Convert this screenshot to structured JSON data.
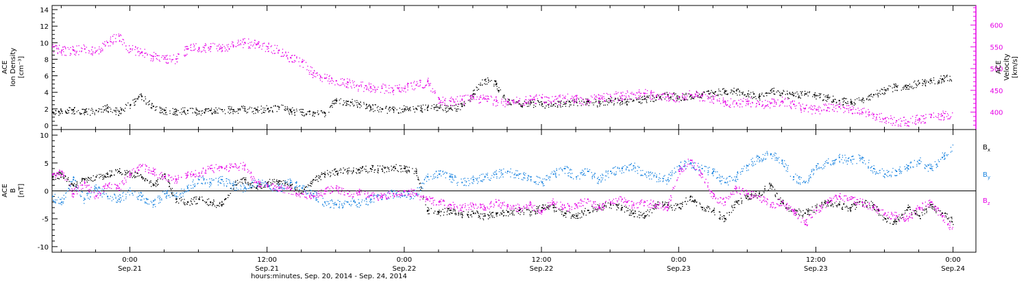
{
  "colors": {
    "black": "#000000",
    "magenta": "#e600e6",
    "blue": "#1a84e0",
    "axis": "#000000"
  },
  "x_axis": {
    "tick_labels": [
      {
        "time": "0:00",
        "date": "Sep.21",
        "hour": 24
      },
      {
        "time": "12:00",
        "date": "Sep.21",
        "hour": 36
      },
      {
        "time": "0:00",
        "date": "Sep.22",
        "hour": 48
      },
      {
        "time": "12:00",
        "date": "Sep.22",
        "hour": 60
      },
      {
        "time": "0:00",
        "date": "Sep.23",
        "hour": 72
      },
      {
        "time": "12:00",
        "date": "Sep.23",
        "hour": 84
      },
      {
        "time": "0:00",
        "date": "Sep.24",
        "hour": 96
      }
    ],
    "title": "hours:minutes, Sep. 20, 2014 - Sep. 24, 2014"
  },
  "chart_data": [
    {
      "type": "scatter",
      "panel": "top",
      "ylabel_left": [
        "ACE",
        "Ion Density",
        "[cm⁻³]"
      ],
      "ylabel_right": [
        "ACE",
        "Velocity",
        "[km/s]"
      ],
      "x_unit": "hours since Sep. 20, 2014 00:00",
      "xlim": [
        17.2,
        98
      ],
      "ylim_left": [
        -0.5,
        14.5
      ],
      "ylim_right": [
        360,
        645
      ],
      "yticks_left": [
        0,
        2,
        4,
        6,
        8,
        10,
        12,
        14
      ],
      "yticks_right": [
        400,
        450,
        500,
        550,
        600
      ],
      "series": [
        {
          "axis": "left",
          "color": "#000000",
          "x": [
            17.2,
            18,
            19,
            20,
            21,
            22,
            23,
            24,
            25,
            26,
            27,
            28,
            29,
            30,
            31,
            32,
            33,
            34,
            35,
            36,
            37,
            38,
            39,
            40,
            41,
            42,
            43,
            44,
            45,
            46,
            47,
            48,
            49,
            50,
            51,
            52,
            53,
            54,
            55,
            56,
            57,
            58,
            59,
            60,
            61,
            62,
            63,
            64,
            65,
            66,
            67,
            68,
            69,
            70,
            71,
            72,
            73,
            74,
            75,
            76,
            77,
            78,
            79,
            80,
            81,
            82,
            83,
            84,
            85,
            86,
            87,
            88,
            89,
            90,
            91,
            92,
            93,
            94,
            95
          ],
          "y": [
            1.6,
            1.7,
            1.9,
            1.6,
            1.8,
            2.1,
            1.7,
            2.5,
            3.5,
            2.3,
            1.8,
            1.7,
            1.8,
            1.7,
            1.8,
            1.9,
            1.9,
            2.0,
            1.9,
            2.0,
            2.2,
            1.8,
            1.6,
            1.6,
            1.5,
            3.0,
            2.9,
            2.6,
            2.2,
            2.0,
            1.9,
            2.0,
            2.0,
            2.2,
            2.1,
            2.1,
            2.3,
            3.8,
            5.5,
            5.0,
            2.9,
            2.6,
            2.7,
            2.6,
            2.5,
            2.6,
            2.8,
            2.9,
            2.7,
            3.0,
            2.9,
            3.0,
            3.2,
            3.4,
            3.7,
            3.4,
            3.6,
            3.8,
            3.9,
            4.1,
            4.2,
            3.8,
            3.5,
            4.2,
            3.9,
            3.6,
            3.8,
            3.6,
            3.4,
            3.0,
            2.8,
            3.1,
            3.7,
            4.3,
            4.7,
            4.8,
            5.1,
            5.4,
            5.6
          ]
        },
        {
          "axis": "right",
          "color": "#e600e6",
          "x": [
            17.2,
            18,
            19,
            20,
            21,
            22,
            23,
            24,
            25,
            26,
            27,
            28,
            29,
            30,
            31,
            32,
            33,
            34,
            35,
            36,
            37,
            38,
            39,
            40,
            41,
            42,
            43,
            44,
            45,
            46,
            47,
            48,
            49,
            50,
            51,
            52,
            53,
            54,
            55,
            56,
            57,
            58,
            59,
            60,
            61,
            62,
            63,
            64,
            65,
            66,
            67,
            68,
            69,
            70,
            71,
            72,
            73,
            74,
            75,
            76,
            77,
            78,
            79,
            80,
            81,
            82,
            83,
            84,
            85,
            86,
            87,
            88,
            89,
            90,
            91,
            92,
            93,
            94,
            95
          ],
          "y": [
            550,
            542,
            542,
            545,
            540,
            560,
            575,
            545,
            538,
            528,
            525,
            522,
            545,
            548,
            550,
            548,
            552,
            560,
            555,
            550,
            542,
            525,
            515,
            490,
            478,
            472,
            468,
            460,
            458,
            455,
            450,
            455,
            462,
            470,
            430,
            425,
            428,
            433,
            430,
            425,
            423,
            426,
            428,
            433,
            425,
            432,
            430,
            428,
            432,
            436,
            438,
            441,
            443,
            438,
            436,
            435,
            440,
            437,
            430,
            425,
            419,
            425,
            418,
            421,
            425,
            418,
            408,
            405,
            410,
            412,
            405,
            400,
            395,
            385,
            380,
            378,
            385,
            388,
            392
          ]
        }
      ]
    },
    {
      "type": "scatter",
      "panel": "bottom",
      "ylabel": [
        "ACE",
        "B",
        "[nT]"
      ],
      "x_unit": "hours since Sep. 20, 2014 00:00",
      "xlim": [
        17.2,
        98
      ],
      "ylim": [
        -11,
        11
      ],
      "yticks": [
        -10,
        -5,
        0,
        5,
        10
      ],
      "legend": [
        {
          "label": "B",
          "sub": "x",
          "color": "#000000"
        },
        {
          "label": "B",
          "sub": "y",
          "color": "#1a84e0"
        },
        {
          "label": "B",
          "sub": "z",
          "color": "#e600e6"
        }
      ],
      "legend_position": "right",
      "series": [
        {
          "name": "Bx",
          "color": "#000000",
          "x": [
            17.2,
            18,
            19,
            20,
            21,
            22,
            23,
            24,
            25,
            26,
            27,
            28,
            29,
            30,
            31,
            32,
            33,
            34,
            35,
            36,
            37,
            38,
            39,
            40,
            41,
            42,
            43,
            44,
            45,
            46,
            47,
            48,
            49,
            50,
            51,
            52,
            53,
            54,
            55,
            56,
            57,
            58,
            59,
            60,
            61,
            62,
            63,
            64,
            65,
            66,
            67,
            68,
            69,
            70,
            71,
            72,
            73,
            74,
            75,
            76,
            77,
            78,
            79,
            80,
            81,
            82,
            83,
            84,
            85,
            86,
            87,
            88,
            89,
            90,
            91,
            92,
            93,
            94,
            95
          ],
          "y": [
            2.5,
            3.0,
            1.0,
            2.0,
            2.5,
            3.0,
            3.5,
            3.0,
            2.5,
            1.0,
            3.0,
            -1.5,
            -2.0,
            -1.5,
            -2.0,
            -2.5,
            1.0,
            2.0,
            0.5,
            1.5,
            1.8,
            1.0,
            -0.5,
            2.0,
            3.0,
            3.5,
            3.6,
            3.8,
            4.0,
            3.9,
            4.2,
            4.0,
            3.5,
            -3.5,
            -3.8,
            -3.5,
            -4.2,
            -4.0,
            -4.5,
            -4.0,
            -3.8,
            -3.5,
            -3.8,
            -3.0,
            -3.0,
            -4.0,
            -4.5,
            -3.5,
            -3.0,
            -2.5,
            -3.0,
            -4.0,
            -4.5,
            -2.5,
            -2.5,
            -3.0,
            -1.0,
            -3.0,
            -3.5,
            -5.0,
            -2.0,
            -1.0,
            -0.5,
            1.0,
            -2.0,
            -3.5,
            -4.0,
            -3.0,
            -2.0,
            -2.5,
            -3.0,
            -2.0,
            -2.5,
            -5.0,
            -5.5,
            -3.0,
            -4.5,
            -2.5,
            -4.0
          ]
        },
        {
          "name": "By",
          "color": "#1a84e0",
          "x": [
            17.2,
            18,
            19,
            20,
            21,
            22,
            23,
            24,
            25,
            26,
            27,
            28,
            29,
            30,
            31,
            32,
            33,
            34,
            35,
            36,
            37,
            38,
            39,
            40,
            41,
            42,
            43,
            44,
            45,
            46,
            47,
            48,
            49,
            50,
            51,
            52,
            53,
            54,
            55,
            56,
            57,
            58,
            59,
            60,
            61,
            62,
            63,
            64,
            65,
            66,
            67,
            68,
            69,
            70,
            71,
            72,
            73,
            74,
            75,
            76,
            77,
            78,
            79,
            80,
            81,
            82,
            83,
            84,
            85,
            86,
            87,
            88,
            89,
            90,
            91,
            92,
            93,
            94,
            95
          ],
          "y": [
            -1.0,
            -2.0,
            2.0,
            -1.5,
            0.5,
            -1.0,
            -1.5,
            0.0,
            -1.0,
            -2.5,
            -0.5,
            -1.0,
            0.5,
            2.0,
            1.5,
            2.0,
            1.0,
            0.5,
            1.5,
            1.0,
            0.5,
            1.5,
            0.5,
            -0.5,
            -2.0,
            -2.5,
            -2.0,
            -2.2,
            -1.5,
            -1.0,
            -0.5,
            -0.8,
            -0.5,
            2.5,
            3.0,
            2.5,
            1.5,
            2.0,
            2.5,
            3.0,
            3.5,
            3.0,
            2.5,
            1.5,
            3.0,
            4.0,
            2.5,
            3.5,
            2.0,
            3.5,
            4.0,
            4.5,
            3.0,
            2.5,
            2.0,
            4.5,
            5.0,
            4.0,
            3.5,
            1.5,
            2.5,
            4.5,
            6.0,
            6.5,
            5.5,
            2.5,
            1.5,
            4.5,
            5.0,
            6.0,
            5.5,
            6.0,
            4.0,
            3.0,
            3.5,
            4.5,
            5.5,
            4.0,
            6.0
          ]
        },
        {
          "name": "Bz",
          "color": "#e600e6",
          "x": [
            17.2,
            18,
            19,
            20,
            21,
            22,
            23,
            24,
            25,
            26,
            27,
            28,
            29,
            30,
            31,
            32,
            33,
            34,
            35,
            36,
            37,
            38,
            39,
            40,
            41,
            42,
            43,
            44,
            45,
            46,
            47,
            48,
            49,
            50,
            51,
            52,
            53,
            54,
            55,
            56,
            57,
            58,
            59,
            60,
            61,
            62,
            63,
            64,
            65,
            66,
            67,
            68,
            69,
            70,
            71,
            72,
            73,
            74,
            75,
            76,
            77,
            78,
            79,
            80,
            81,
            82,
            83,
            84,
            85,
            86,
            87,
            88,
            89,
            90,
            91,
            92,
            93,
            94,
            95
          ],
          "y": [
            3.0,
            3.5,
            -0.5,
            1.5,
            -1.0,
            1.0,
            0.5,
            3.0,
            4.5,
            3.5,
            2.5,
            2.0,
            2.8,
            3.2,
            4.0,
            4.2,
            4.3,
            4.5,
            1.5,
            1.0,
            0.5,
            0.2,
            -0.5,
            -1.0,
            0.0,
            0.5,
            -0.5,
            -0.2,
            -0.8,
            -1.0,
            -0.5,
            0.0,
            -0.5,
            -1.5,
            -2.0,
            -2.5,
            -3.0,
            -2.5,
            -3.0,
            -2.0,
            -2.8,
            -3.0,
            -2.5,
            -3.5,
            -2.0,
            -3.0,
            -2.5,
            -1.5,
            -3.0,
            -2.0,
            -1.5,
            -2.5,
            -2.0,
            -2.5,
            -3.0,
            3.5,
            5.5,
            3.0,
            -1.0,
            -2.0,
            0.5,
            -0.5,
            -1.0,
            -2.5,
            -2.0,
            -3.5,
            -6.0,
            -3.5,
            -2.0,
            -1.0,
            -1.5,
            -2.0,
            -3.0,
            -4.0,
            -4.5,
            -5.0,
            -3.0,
            -2.0,
            -4.5
          ]
        }
      ]
    }
  ]
}
